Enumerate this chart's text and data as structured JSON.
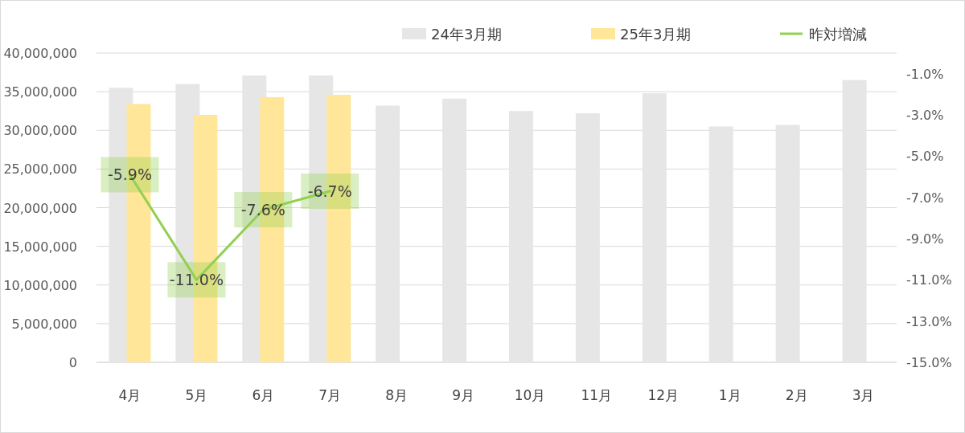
{
  "chart_data": {
    "type": "bar",
    "categories": [
      "4月",
      "5月",
      "6月",
      "7月",
      "8月",
      "9月",
      "10月",
      "11月",
      "12月",
      "1月",
      "2月",
      "3月"
    ],
    "series": [
      {
        "name": "24年3月期",
        "color": "#e7e6e6",
        "values": [
          35500000,
          36000000,
          37100000,
          37100000,
          33200000,
          34100000,
          32500000,
          32200000,
          34800000,
          30500000,
          30700000,
          36500000
        ]
      },
      {
        "name": "25年3月期",
        "color": "#ffe699",
        "values": [
          33400000,
          32000000,
          34300000,
          34600000,
          null,
          null,
          null,
          null,
          null,
          null,
          null,
          null
        ]
      },
      {
        "name": "昨対増減",
        "type": "line",
        "axis": "y2",
        "color": "#92d050",
        "values": [
          -5.9,
          -11.0,
          -7.6,
          -6.7,
          null,
          null,
          null,
          null,
          null,
          null,
          null,
          null
        ],
        "value_labels": [
          "-5.9%",
          "-11.0%",
          "-7.6%",
          "-6.7%",
          null,
          null,
          null,
          null,
          null,
          null,
          null,
          null
        ]
      }
    ],
    "ylim": [
      0,
      40000000
    ],
    "yticks": [
      {
        "value": 0,
        "label": "0"
      },
      {
        "value": 5000000,
        "label": "5,000,000"
      },
      {
        "value": 10000000,
        "label": "10,000,000"
      },
      {
        "value": 15000000,
        "label": "15,000,000"
      },
      {
        "value": 20000000,
        "label": "20,000,000"
      },
      {
        "value": 25000000,
        "label": "25,000,000"
      },
      {
        "value": 30000000,
        "label": "30,000,000"
      },
      {
        "value": 35000000,
        "label": "35,000,000"
      },
      {
        "value": 40000000,
        "label": "40,000,000"
      }
    ],
    "y2lim": [
      -15,
      0
    ],
    "y2ticks": [
      {
        "value": -15,
        "label": "-15.0%"
      },
      {
        "value": -13,
        "label": "-13.0%"
      },
      {
        "value": -11,
        "label": "-11.0%"
      },
      {
        "value": -9,
        "label": "-9.0%"
      },
      {
        "value": -7,
        "label": "-7.0%"
      },
      {
        "value": -5,
        "label": "-5.0%"
      },
      {
        "value": -3,
        "label": "-3.0%"
      },
      {
        "value": -1,
        "label": "-1.0%"
      }
    ],
    "grid": "y",
    "legend": "top right"
  }
}
